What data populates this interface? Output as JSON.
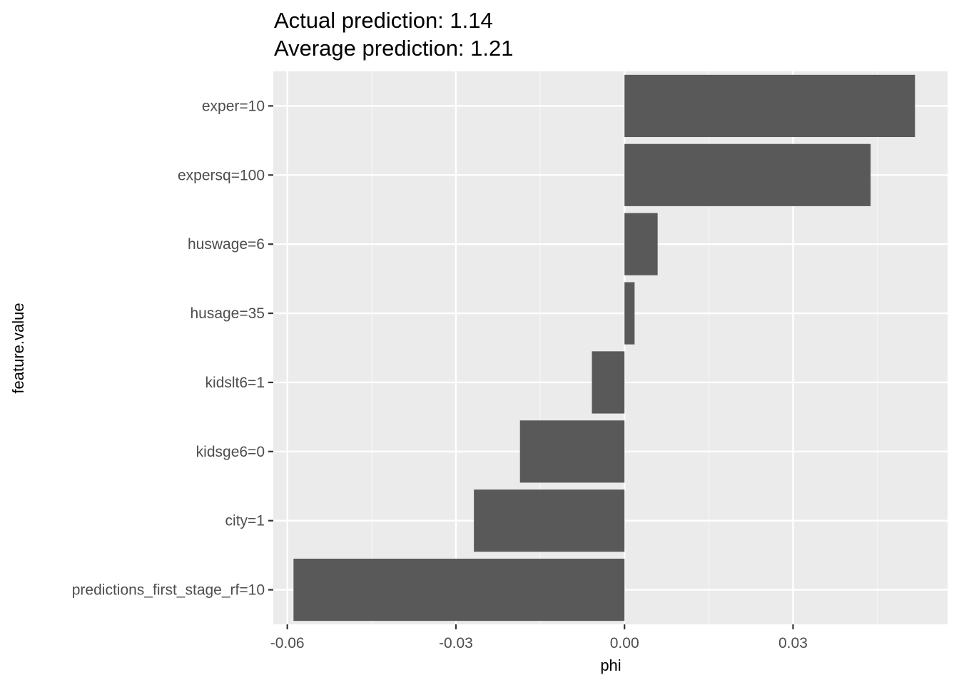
{
  "chart_data": {
    "type": "bar",
    "orientation": "horizontal",
    "title_lines": [
      "Actual prediction: 1.14",
      "Average prediction: 1.21"
    ],
    "xlabel": "phi",
    "ylabel": "feature.value",
    "xlim": [
      -0.0625,
      0.0575
    ],
    "x_ticks": [
      -0.06,
      -0.03,
      0.0,
      0.03
    ],
    "x_tick_labels": [
      "-0.06",
      "-0.03",
      "0.00",
      "0.03"
    ],
    "x_minor_ticks": [
      -0.045,
      -0.015,
      0.015,
      0.045
    ],
    "categories": [
      "exper=10",
      "expersq=100",
      "huswage=6",
      "husage=35",
      "kidslt6=1",
      "kidsge6=0",
      "city=1",
      "predictions_first_stage_rf=10"
    ],
    "values": [
      0.0517,
      0.0438,
      0.0059,
      0.0018,
      -0.0058,
      -0.0186,
      -0.0268,
      -0.0589
    ],
    "grid": true,
    "legend": "none",
    "colors": {
      "bar": "#595959",
      "panel": "#ebebeb",
      "grid_major": "#ffffff",
      "grid_minor": "#f5f5f5",
      "tick": "#333333"
    }
  }
}
